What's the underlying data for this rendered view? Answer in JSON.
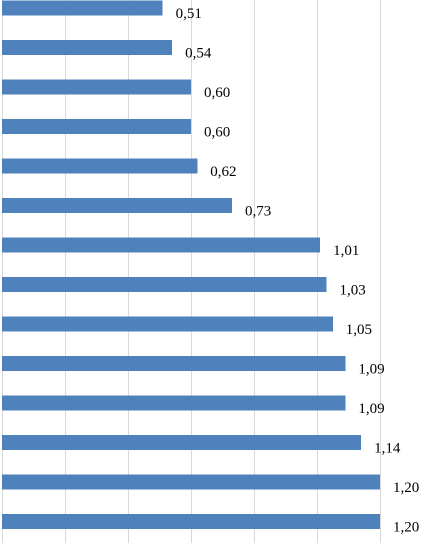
{
  "chart_data": {
    "type": "bar",
    "orientation": "horizontal",
    "values": [
      0.51,
      0.54,
      0.6,
      0.6,
      0.62,
      0.73,
      1.01,
      1.03,
      1.05,
      1.09,
      1.09,
      1.14,
      1.2,
      1.2
    ],
    "data_labels": [
      "0,51",
      "0,54",
      "0,60",
      "0,60",
      "0,62",
      "0,73",
      "1,01",
      "1,03",
      "1,05",
      "1,09",
      "1,09",
      "1,14",
      "1,20",
      "1,20"
    ],
    "xlim": [
      0,
      1.34
    ],
    "grid": true,
    "bar_color": "#4f81bd",
    "grid_color": "#d9d9d9"
  }
}
